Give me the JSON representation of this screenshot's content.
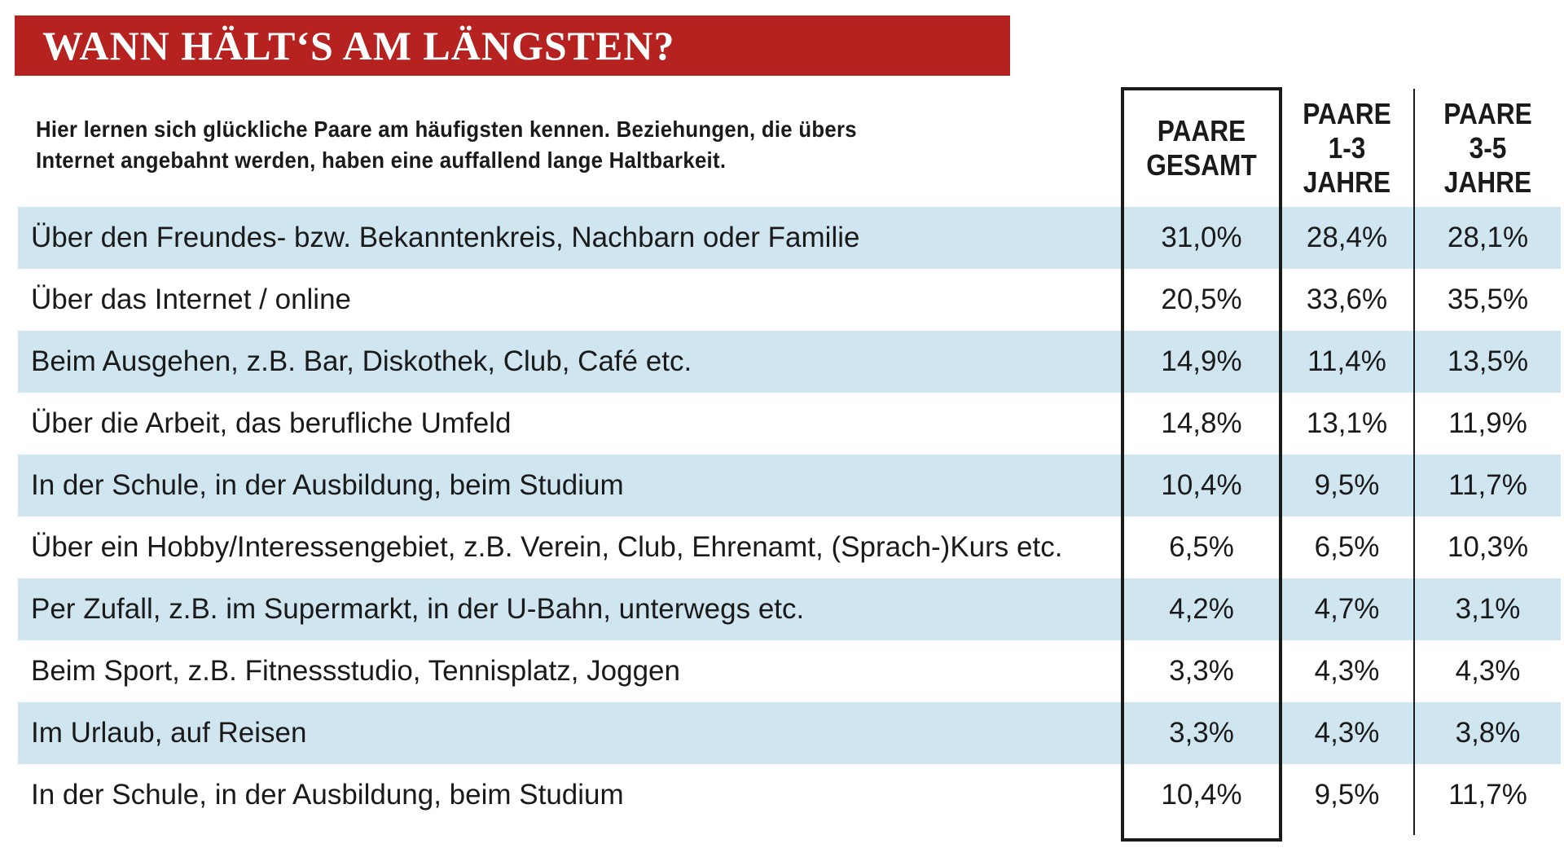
{
  "header": {
    "title": "WANN HÄLT‘S AM LÄNGSTEN?",
    "intro": [
      "Hier lernen sich glückliche Paare am häufigsten kennen. Beziehungen, die übers",
      "Internet angebahnt werden, haben eine auffallend lange Haltbarkeit."
    ]
  },
  "table": {
    "columns": [
      [
        "PAARE",
        "GESAMT"
      ],
      [
        "PAARE",
        "1-3",
        "JAHRE"
      ],
      [
        "PAARE",
        "3-5",
        "JAHRE"
      ]
    ],
    "rows": [
      [
        "Über den Freundes- bzw. Bekanntenkreis, Nachbarn oder Familie",
        "31,0%",
        "28,4%",
        "28,1%"
      ],
      [
        "Über das Internet / online",
        "20,5%",
        "33,6%",
        "35,5%"
      ],
      [
        "Beim Ausgehen, z.B. Bar, Diskothek, Club, Café etc.",
        "14,9%",
        "11,4%",
        "13,5%"
      ],
      [
        "Über die Arbeit, das berufliche Umfeld",
        "14,8%",
        "13,1%",
        "11,9%"
      ],
      [
        "In der Schule, in der Ausbildung, beim Studium",
        "10,4%",
        "9,5%",
        "11,7%"
      ],
      [
        "Über ein Hobby/Interessengebiet, z.B. Verein, Club, Ehrenamt, (Sprach-)Kurs etc.",
        "6,5%",
        "6,5%",
        "10,3%"
      ],
      [
        "Per Zufall, z.B. im Supermarkt, in der U-Bahn, unterwegs etc.",
        "4,2%",
        "4,7%",
        "3,1%"
      ],
      [
        "Beim Sport, z.B. Fitnessstudio, Tennisplatz, Joggen",
        "3,3%",
        "4,3%",
        "4,3%"
      ],
      [
        "Im Urlaub, auf Reisen",
        "3,3%",
        "4,3%",
        "3,8%"
      ],
      [
        "In der Schule, in der Ausbildung, beim Studium",
        "10,4%",
        "9,5%",
        "11,7%"
      ]
    ]
  }
}
